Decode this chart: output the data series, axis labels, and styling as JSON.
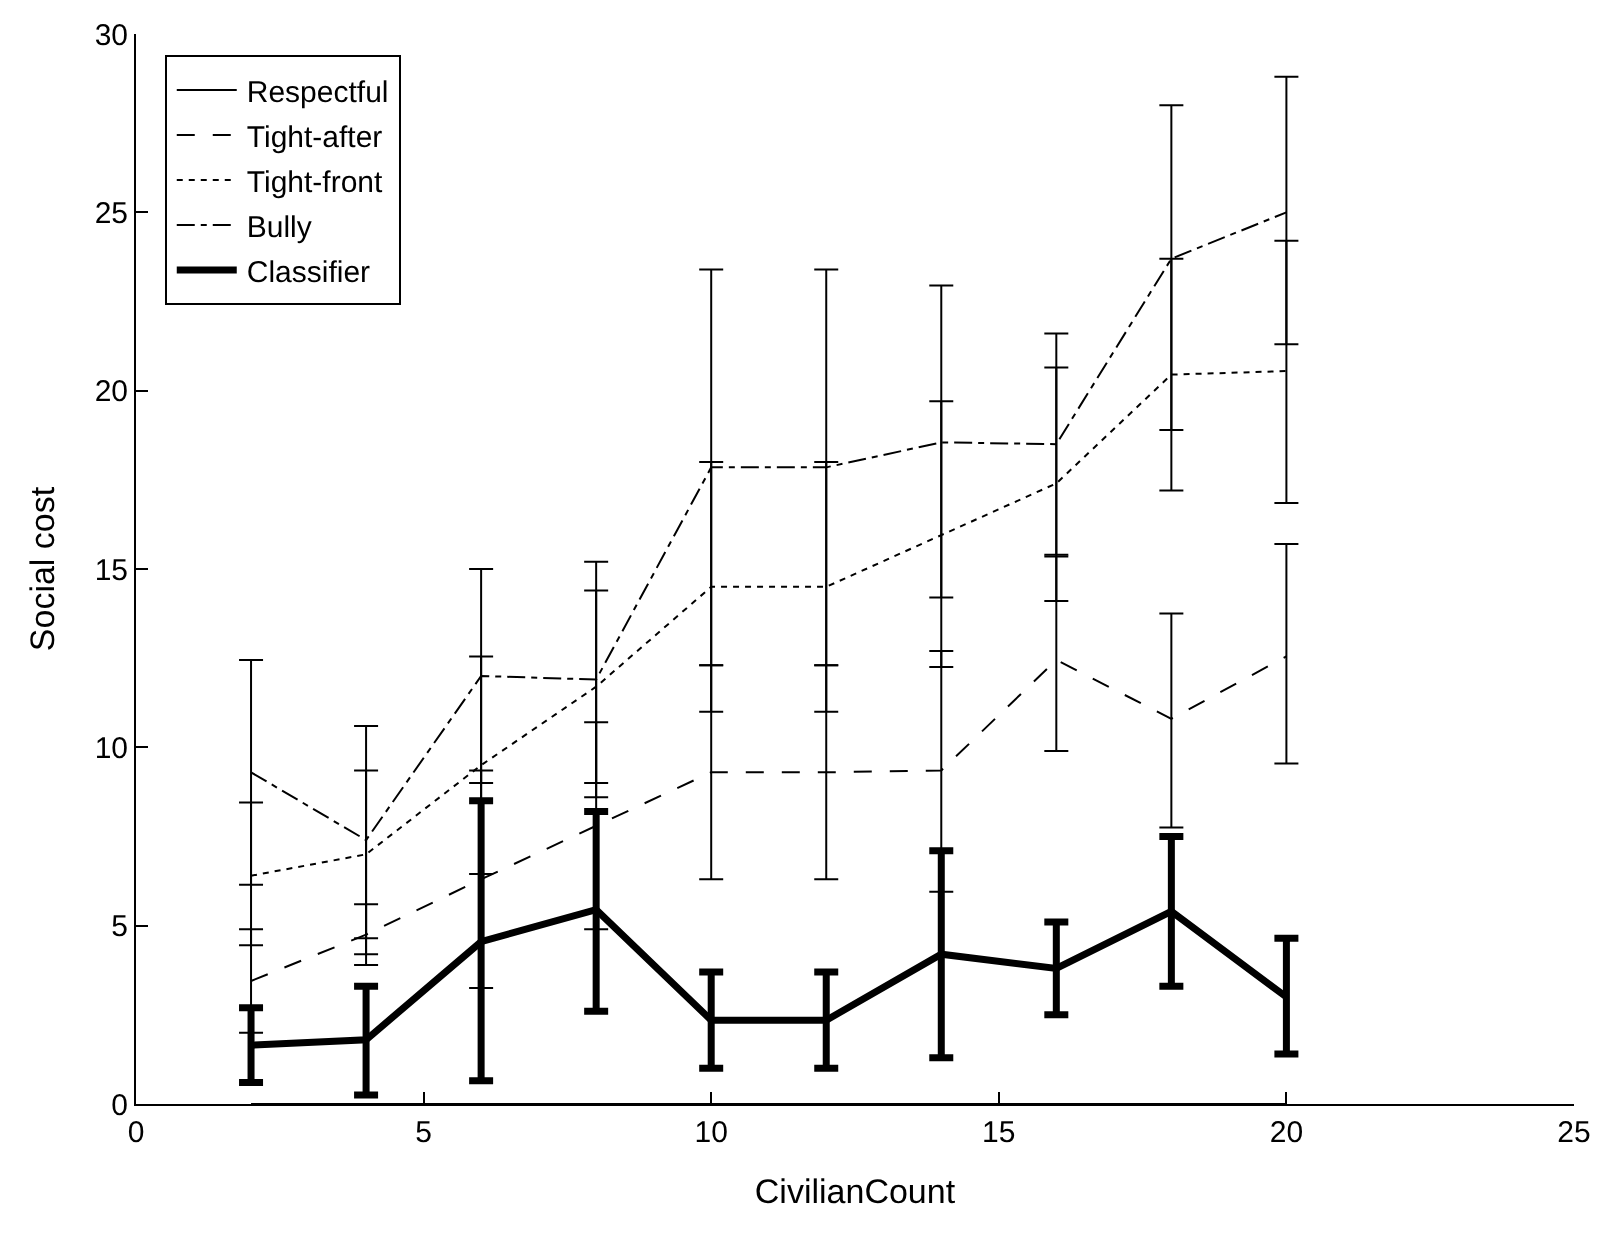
{
  "chart_data": {
    "type": "line",
    "xlabel": "CivilianCount",
    "ylabel": "Social cost",
    "x": [
      2,
      4,
      6,
      8,
      10,
      12,
      14,
      16,
      18,
      20
    ],
    "xlim": [
      0,
      25
    ],
    "xticks": [
      0,
      5,
      10,
      15,
      20,
      25
    ],
    "ylim": [
      0,
      30
    ],
    "yticks": [
      0,
      5,
      10,
      15,
      20,
      25,
      30
    ],
    "grid": false,
    "legend": "top left",
    "marker": "none",
    "series": [
      {
        "name": "Respectful",
        "color": "#000000",
        "line_style": "solid",
        "values": [
          0,
          0,
          0,
          0,
          0,
          0,
          0,
          0,
          0,
          0
        ]
      },
      {
        "name": "Tight-after",
        "color": "#000000",
        "line_style": "dashed",
        "values": [
          3.45,
          4.75,
          6.3,
          7.8,
          9.3,
          9.3,
          9.35,
          12.45,
          10.8,
          12.55
        ],
        "errors": [
          [
            2.0,
            4.9
          ],
          [
            3.9,
            5.6
          ],
          [
            3.25,
            9.35
          ],
          [
            4.9,
            10.7
          ],
          [
            6.3,
            12.3
          ],
          [
            6.3,
            12.3
          ],
          [
            5.95,
            12.7
          ],
          [
            9.9,
            15.35
          ],
          [
            7.75,
            13.75
          ],
          [
            9.55,
            15.7
          ]
        ]
      },
      {
        "name": "Tight-front",
        "color": "#000000",
        "line_style": "dotted",
        "values": [
          6.4,
          7.0,
          9.5,
          11.7,
          14.5,
          14.5,
          15.95,
          17.4,
          20.45,
          20.55
        ],
        "errors": [
          [
            4.45,
            8.45
          ],
          [
            4.65,
            9.35
          ],
          [
            6.45,
            12.55
          ],
          [
            9.0,
            14.4
          ],
          [
            11.0,
            18.0
          ],
          [
            11.0,
            18.0
          ],
          [
            12.25,
            19.7
          ],
          [
            14.1,
            20.65
          ],
          [
            17.2,
            23.7
          ],
          [
            16.85,
            24.2
          ]
        ]
      },
      {
        "name": "Bully",
        "color": "#000000",
        "line_style": "dashdot",
        "values": [
          9.3,
          7.4,
          12.0,
          11.9,
          17.85,
          17.85,
          18.55,
          18.5,
          23.7,
          25.0
        ],
        "errors": [
          [
            6.15,
            12.45
          ],
          [
            4.2,
            10.6
          ],
          [
            9.0,
            15.0
          ],
          [
            8.6,
            15.2
          ],
          [
            12.3,
            23.4
          ],
          [
            12.3,
            23.4
          ],
          [
            14.2,
            22.95
          ],
          [
            15.4,
            21.6
          ],
          [
            18.9,
            28.0
          ],
          [
            21.3,
            28.8
          ]
        ]
      },
      {
        "name": "Classifier",
        "color": "#000000",
        "line_style": "solid",
        "values": [
          1.65,
          1.8,
          4.55,
          5.45,
          2.35,
          2.35,
          4.2,
          3.8,
          5.4,
          3.0
        ],
        "errors": [
          [
            0.6,
            2.7
          ],
          [
            0.25,
            3.3
          ],
          [
            0.65,
            8.5
          ],
          [
            2.6,
            8.2
          ],
          [
            1.0,
            3.7
          ],
          [
            1.0,
            3.7
          ],
          [
            1.3,
            7.1
          ],
          [
            2.5,
            5.1
          ],
          [
            3.3,
            7.5
          ],
          [
            1.4,
            4.65
          ]
        ]
      }
    ]
  }
}
